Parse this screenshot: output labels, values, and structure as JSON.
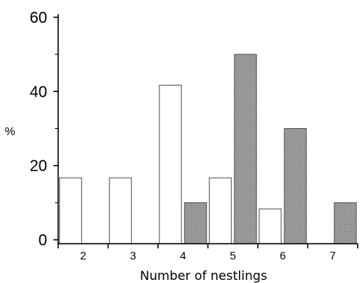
{
  "chart_data": {
    "type": "bar",
    "title": "",
    "xlabel": "Number of nestlings",
    "ylabel": "%",
    "ylim": [
      0,
      60
    ],
    "yticks": [
      0,
      20,
      40,
      60
    ],
    "categories": [
      "2",
      "3",
      "4",
      "5",
      "6",
      "7"
    ],
    "series": [
      {
        "values": [
          16.7,
          16.7,
          41.7,
          16.7,
          8.3,
          0
        ],
        "color": "#ffffff",
        "stroke": "#555555"
      },
      {
        "values": [
          0,
          0,
          10,
          50,
          30,
          10
        ],
        "color": "#999999",
        "stroke": "#555555"
      }
    ],
    "grid": false,
    "legend": "none"
  }
}
